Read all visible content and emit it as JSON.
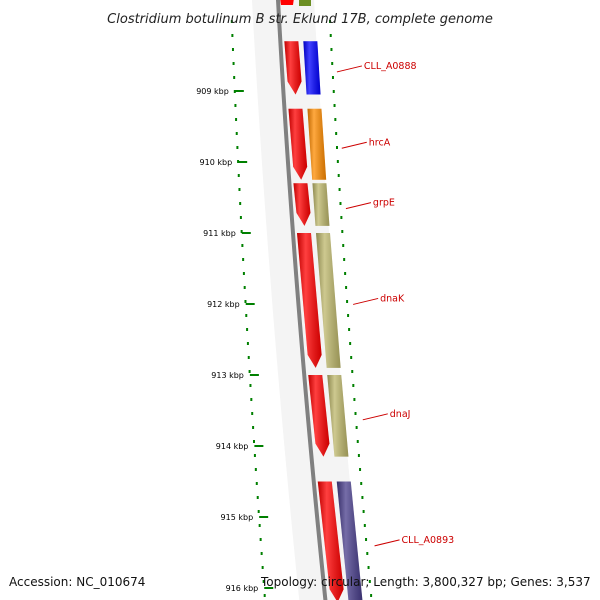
{
  "map": {
    "title": "Clostridium botulinum B str. Eklund 17B, complete genome",
    "accession": "Accession: NC_010674",
    "summary": "Topology: circular; Length: 3,800,327 bp; Genes: 3,537"
  },
  "axis": {
    "unit": "kbp",
    "ticks": [
      {
        "kbp": 909,
        "label": "909 kbp"
      },
      {
        "kbp": 910,
        "label": "910 kbp"
      },
      {
        "kbp": 911,
        "label": "911 kbp"
      },
      {
        "kbp": 912,
        "label": "912 kbp"
      },
      {
        "kbp": 913,
        "label": "913 kbp"
      },
      {
        "kbp": 914,
        "label": "914 kbp"
      },
      {
        "kbp": 915,
        "label": "915 kbp"
      },
      {
        "kbp": 916,
        "label": "916 kbp"
      }
    ]
  },
  "genes": [
    {
      "name": "CLL_A0888",
      "start_kbp": 908.3,
      "end_kbp": 909.05,
      "color": "#0000ff"
    },
    {
      "name": "hrcA",
      "start_kbp": 909.25,
      "end_kbp": 910.25,
      "color": "#ff8c00"
    },
    {
      "name": "grpE",
      "start_kbp": 910.3,
      "end_kbp": 910.9,
      "color": "#bdb76b"
    },
    {
      "name": "dnaK",
      "start_kbp": 911.0,
      "end_kbp": 912.9,
      "color": "#bdb76b"
    },
    {
      "name": "dnaJ",
      "start_kbp": 913.0,
      "end_kbp": 914.15,
      "color": "#bdb76b"
    },
    {
      "name": "CLL_A0893",
      "start_kbp": 914.5,
      "end_kbp": 916.2,
      "color": "#483d8b"
    }
  ],
  "colors": {
    "cds_arrow": "#ff0000",
    "backbone": "#808080",
    "tick": "#008000",
    "label": "#cc0000",
    "top_feature": "#6b8e23"
  }
}
